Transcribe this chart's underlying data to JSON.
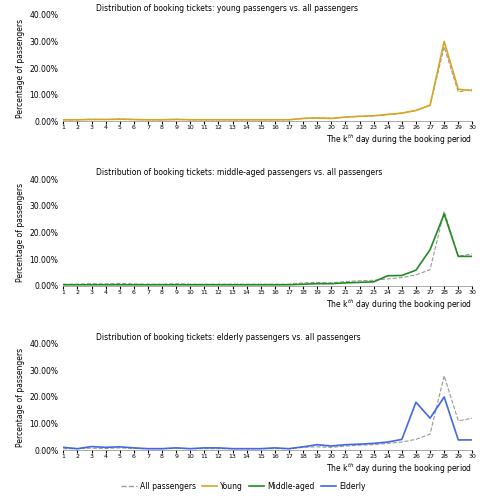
{
  "days": [
    1,
    2,
    3,
    4,
    5,
    6,
    7,
    8,
    9,
    10,
    11,
    12,
    13,
    14,
    15,
    16,
    17,
    18,
    19,
    20,
    21,
    22,
    23,
    24,
    25,
    26,
    27,
    28,
    29,
    30
  ],
  "all_passengers": [
    0.005,
    0.005,
    0.007,
    0.006,
    0.008,
    0.006,
    0.005,
    0.005,
    0.007,
    0.005,
    0.005,
    0.005,
    0.005,
    0.005,
    0.005,
    0.005,
    0.005,
    0.01,
    0.012,
    0.01,
    0.015,
    0.018,
    0.02,
    0.025,
    0.03,
    0.04,
    0.06,
    0.28,
    0.11,
    0.12
  ],
  "young": [
    0.005,
    0.005,
    0.006,
    0.006,
    0.007,
    0.006,
    0.005,
    0.005,
    0.006,
    0.005,
    0.005,
    0.005,
    0.005,
    0.005,
    0.005,
    0.005,
    0.005,
    0.01,
    0.012,
    0.01,
    0.015,
    0.018,
    0.02,
    0.025,
    0.03,
    0.04,
    0.06,
    0.3,
    0.12,
    0.115
  ],
  "middle_aged": [
    0.003,
    0.003,
    0.003,
    0.003,
    0.003,
    0.003,
    0.003,
    0.003,
    0.003,
    0.003,
    0.003,
    0.003,
    0.003,
    0.003,
    0.003,
    0.003,
    0.003,
    0.005,
    0.007,
    0.007,
    0.01,
    0.012,
    0.014,
    0.037,
    0.038,
    0.058,
    0.135,
    0.27,
    0.11,
    0.11
  ],
  "elderly": [
    0.01,
    0.005,
    0.013,
    0.01,
    0.012,
    0.008,
    0.005,
    0.005,
    0.008,
    0.005,
    0.008,
    0.008,
    0.005,
    0.005,
    0.005,
    0.008,
    0.005,
    0.012,
    0.02,
    0.015,
    0.02,
    0.022,
    0.025,
    0.03,
    0.04,
    0.18,
    0.12,
    0.2,
    0.038,
    0.038
  ],
  "title1": "Distribution of booking tickets: young passengers vs. all passengers",
  "title2": "Distribution of booking tickets: middle-aged passengers vs. all passengers",
  "title3": "Distribution of booking tickets: elderly passengers vs. all passengers",
  "ylabel": "Percentage of passengers",
  "ylim": [
    0.0,
    0.4
  ],
  "yticks": [
    0.0,
    0.1,
    0.2,
    0.3,
    0.4
  ],
  "color_all": "#999999",
  "color_young": "#DAA520",
  "color_middle": "#228B22",
  "color_elderly": "#4169E1",
  "legend_labels": [
    "All passengers",
    "Young",
    "Middle-aged",
    "Elderly"
  ]
}
